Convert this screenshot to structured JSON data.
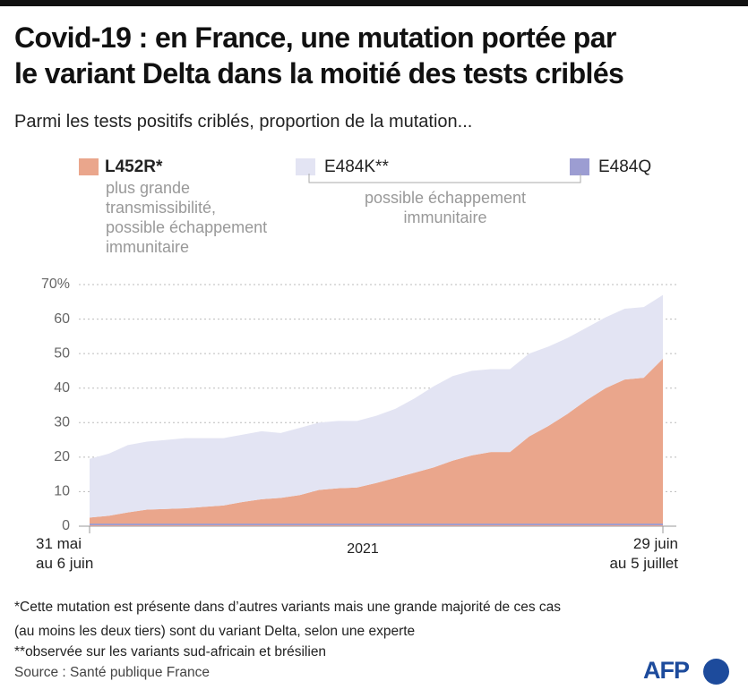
{
  "chart_data": {
    "type": "stacked_area",
    "title": "Covid-19 : en France, une mutation portée par\nle variant Delta dans la moitié des tests criblés",
    "subtitle": "Parmi les tests positifs criblés, proportion de la mutation...",
    "x_label": "2021",
    "categories": [
      "31 mai\nau 6 juin",
      null,
      null,
      null,
      null,
      null,
      null,
      null,
      null,
      null,
      null,
      null,
      null,
      null,
      null,
      null,
      null,
      null,
      null,
      null,
      null,
      null,
      null,
      null,
      null,
      null,
      null,
      null,
      null,
      null,
      "29 juin\nau 5 juillet"
    ],
    "series": [
      {
        "name": "L452R*",
        "description": "plus grande\ntransmissibilité,\npossible échappement\nimmunitaire",
        "color": "#eaa68c",
        "stacked": true,
        "values": [
          2.5,
          3,
          4,
          4.8,
          5,
          5.2,
          5.6,
          6,
          7,
          7.8,
          8.2,
          9,
          10.5,
          11,
          11.2,
          12.5,
          14,
          15.5,
          17,
          19,
          20.5,
          21.5,
          21.5,
          26,
          29,
          32.5,
          36.5,
          40,
          42.5,
          43,
          48.5
        ]
      },
      {
        "name": "E484K**",
        "color": "#e3e4f3",
        "stacked": true,
        "values": [
          17,
          18,
          19.5,
          19.7,
          20,
          20.3,
          19.9,
          19.5,
          19.5,
          19.7,
          18.8,
          19.5,
          19.5,
          19.5,
          19.3,
          19.5,
          20,
          21.5,
          23.5,
          24.5,
          24.5,
          24,
          24,
          24,
          23,
          22,
          21,
          20.5,
          20.5,
          20.5,
          18.5
        ]
      },
      {
        "name": "E484Q",
        "color": "#9c9dd2",
        "stacked": false,
        "values": [
          0.5,
          0.5,
          0.5,
          0.5,
          0.5,
          0.5,
          0.5,
          0.5,
          0.5,
          0.5,
          0.5,
          0.5,
          0.5,
          0.5,
          0.5,
          0.5,
          0.5,
          0.5,
          0.5,
          0.5,
          0.5,
          0.5,
          0.5,
          0.5,
          0.5,
          0.5,
          0.5,
          0.5,
          0.5,
          0.5,
          0.5
        ]
      }
    ],
    "bracket_note": "possible échappement\nimmunitaire",
    "ylim": [
      0,
      70
    ],
    "yticks": [
      0,
      10,
      20,
      30,
      40,
      50,
      60,
      {
        "value": 70,
        "label": "70%"
      }
    ],
    "grid": true,
    "footnotes": [
      "*Cette mutation est présente dans d’autres variants mais une grande majorité de ces cas\n(au moins les deux tiers) sont du variant Delta, selon une experte",
      "**observée sur les variants sud-africain et brésilien"
    ],
    "source": "Source : Santé publique France",
    "logo": "AFP"
  }
}
